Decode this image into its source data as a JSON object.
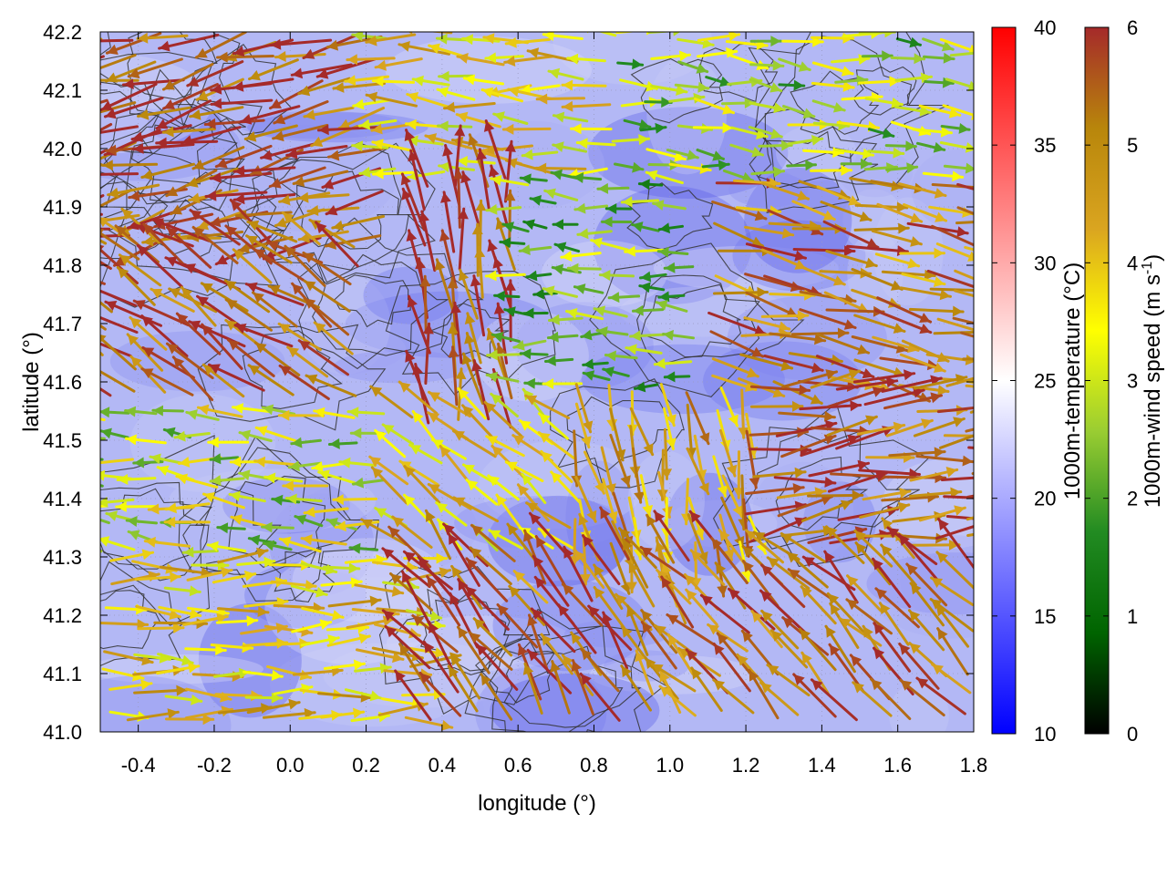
{
  "chart_data": {
    "type": "quiver",
    "title": "",
    "xlabel": "longitude (°)",
    "ylabel": "latitude (°)",
    "xlim": [
      -0.5,
      1.8
    ],
    "ylim": [
      41.0,
      42.2
    ],
    "xticks": [
      "-0.4",
      "-0.2",
      "0.0",
      "0.2",
      "0.4",
      "0.6",
      "0.8",
      "1.0",
      "1.2",
      "1.4",
      "1.6",
      "1.8"
    ],
    "yticks": [
      "41.0",
      "41.1",
      "41.2",
      "41.3",
      "41.4",
      "41.5",
      "41.6",
      "41.7",
      "41.8",
      "41.9",
      "42.0",
      "42.1",
      "42.2"
    ],
    "grid": true,
    "background_field": "temperature",
    "background_color": "#b3b8f5",
    "contour_color": "#333333",
    "colorbars": [
      {
        "label": "1000m-temperature (°C)",
        "range": [
          10,
          40
        ],
        "ticks": [
          "10",
          "15",
          "20",
          "25",
          "30",
          "35",
          "40"
        ],
        "colors": [
          "#0000ff",
          "#ffffff",
          "#ff0000"
        ]
      },
      {
        "label_main": "1000m-wind speed (m s",
        "label_sup": "-1",
        "label_end": ")",
        "range": [
          0,
          6
        ],
        "ticks": [
          "0",
          "1",
          "2",
          "3",
          "4",
          "5",
          "6"
        ],
        "colors": [
          "#000000",
          "#006400",
          "#228b22",
          "#9acd32",
          "#ffff00",
          "#daa520",
          "#b8860b",
          "#a52a2a"
        ]
      }
    ],
    "wind_regions": [
      {
        "x": [
          -0.5,
          0.25
        ],
        "y": [
          41.85,
          42.2
        ],
        "u": -1.0,
        "v": -0.25,
        "speed": 5.7
      },
      {
        "x": [
          0.25,
          0.85
        ],
        "y": [
          41.95,
          42.2
        ],
        "u": -1.0,
        "v": 0.05,
        "speed": 3.8
      },
      {
        "x": [
          0.85,
          1.8
        ],
        "y": [
          41.95,
          42.2
        ],
        "u": 1.0,
        "v": -0.1,
        "speed": 2.6
      },
      {
        "x": [
          -0.5,
          0.2
        ],
        "y": [
          41.55,
          41.85
        ],
        "u": -0.8,
        "v": 0.55,
        "speed": 5.5
      },
      {
        "x": [
          0.35,
          0.6
        ],
        "y": [
          41.5,
          41.95
        ],
        "u": -0.15,
        "v": 1.0,
        "speed": 5.9
      },
      {
        "x": [
          0.6,
          1.1
        ],
        "y": [
          41.6,
          41.95
        ],
        "u": -1.0,
        "v": 0.05,
        "speed": 2.3
      },
      {
        "x": [
          1.1,
          1.8
        ],
        "y": [
          41.6,
          41.95
        ],
        "u": 1.0,
        "v": -0.2,
        "speed": 5.0
      },
      {
        "x": [
          -0.5,
          0.3
        ],
        "y": [
          41.3,
          41.55
        ],
        "u": -1.0,
        "v": 0.1,
        "speed": 3.0
      },
      {
        "x": [
          0.3,
          0.75
        ],
        "y": [
          41.3,
          41.55
        ],
        "u": -0.7,
        "v": 0.6,
        "speed": 3.9
      },
      {
        "x": [
          0.75,
          1.2
        ],
        "y": [
          41.3,
          41.6
        ],
        "u": 0.2,
        "v": -1.0,
        "speed": 4.6
      },
      {
        "x": [
          1.2,
          1.8
        ],
        "y": [
          41.3,
          41.6
        ],
        "u": 1.0,
        "v": 0.15,
        "speed": 5.4
      },
      {
        "x": [
          -0.5,
          0.35
        ],
        "y": [
          41.0,
          41.3
        ],
        "u": 1.0,
        "v": 0.0,
        "speed": 4.0
      },
      {
        "x": [
          0.35,
          0.65
        ],
        "y": [
          41.0,
          41.3
        ],
        "u": -0.6,
        "v": 0.75,
        "speed": 6.0
      },
      {
        "x": [
          0.65,
          1.05
        ],
        "y": [
          41.0,
          41.3
        ],
        "u": -0.5,
        "v": 0.8,
        "speed": 5.2
      },
      {
        "x": [
          1.05,
          1.8
        ],
        "y": [
          41.0,
          41.3
        ],
        "u": -0.7,
        "v": 0.7,
        "speed": 5.3
      }
    ]
  }
}
